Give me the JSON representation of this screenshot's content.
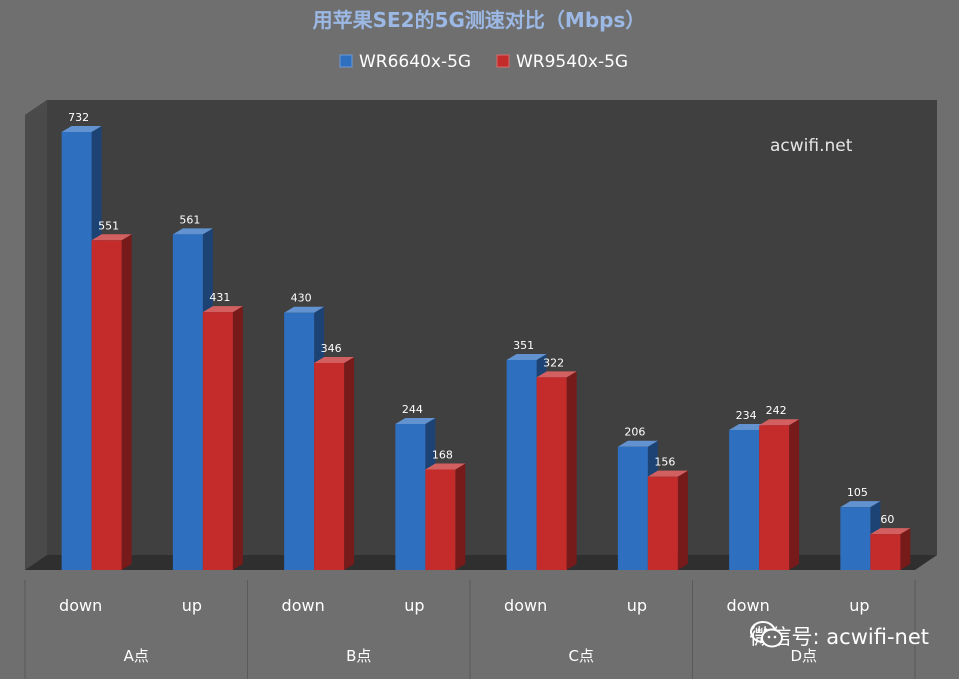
{
  "chart_data": {
    "type": "bar",
    "title": "用苹果SE2的5G测速对比（Mbps）",
    "legend_position": "top",
    "categories": [
      "down",
      "up",
      "down",
      "up",
      "down",
      "up",
      "down",
      "up"
    ],
    "groups": [
      "A点",
      "B点",
      "C点",
      "D点"
    ],
    "series": [
      {
        "name": "WR6640x-5G",
        "color": "#2e6fc0",
        "values": [
          732,
          561,
          430,
          244,
          351,
          206,
          234,
          105
        ]
      },
      {
        "name": "WR9540x-5G",
        "color": "#c42b2b",
        "values": [
          551,
          431,
          346,
          168,
          322,
          156,
          242,
          60
        ]
      }
    ],
    "ylim": [
      0,
      800
    ],
    "grid": false
  },
  "credit": "acwifi.net",
  "watermark": "微信号: acwifi-net"
}
